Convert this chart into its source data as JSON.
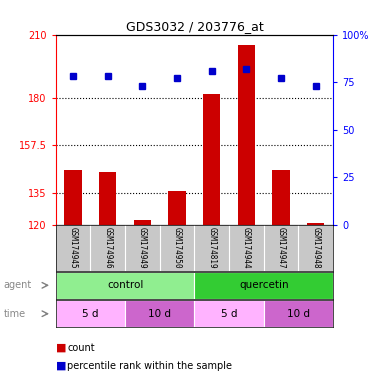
{
  "title": "GDS3032 / 203776_at",
  "samples": [
    "GSM174945",
    "GSM174946",
    "GSM174949",
    "GSM174950",
    "GSM174819",
    "GSM174944",
    "GSM174947",
    "GSM174948"
  ],
  "count_values": [
    146,
    145,
    122,
    136,
    182,
    205,
    146,
    121
  ],
  "percentile_values": [
    78,
    78,
    73,
    77,
    81,
    82,
    77,
    73
  ],
  "ylim_left": [
    120,
    210
  ],
  "ylim_right": [
    0,
    100
  ],
  "yticks_left": [
    120,
    135,
    157.5,
    180,
    210
  ],
  "yticks_right": [
    0,
    25,
    50,
    75,
    100
  ],
  "ytick_labels_left": [
    "120",
    "135",
    "157.5",
    "180",
    "210"
  ],
  "ytick_labels_right": [
    "0",
    "25",
    "50",
    "75",
    "100%"
  ],
  "hlines": [
    135,
    157.5,
    180
  ],
  "agent_groups": [
    {
      "label": "control",
      "start": 0,
      "end": 4,
      "color": "#90EE90"
    },
    {
      "label": "quercetin",
      "start": 4,
      "end": 8,
      "color": "#33CC33"
    }
  ],
  "time_groups": [
    {
      "label": "5 d",
      "start": 0,
      "end": 2,
      "color": "#FFB3FF"
    },
    {
      "label": "10 d",
      "start": 2,
      "end": 4,
      "color": "#CC66CC"
    },
    {
      "label": "5 d",
      "start": 4,
      "end": 6,
      "color": "#FFB3FF"
    },
    {
      "label": "10 d",
      "start": 6,
      "end": 8,
      "color": "#CC66CC"
    }
  ],
  "bar_color": "#CC0000",
  "dot_color": "#0000CC",
  "bar_width": 0.5,
  "label_count": "count",
  "label_percentile": "percentile rank within the sample",
  "sample_band_color": "#C8C8C8",
  "agent_label_color": "#888888",
  "time_label_color": "#888888"
}
